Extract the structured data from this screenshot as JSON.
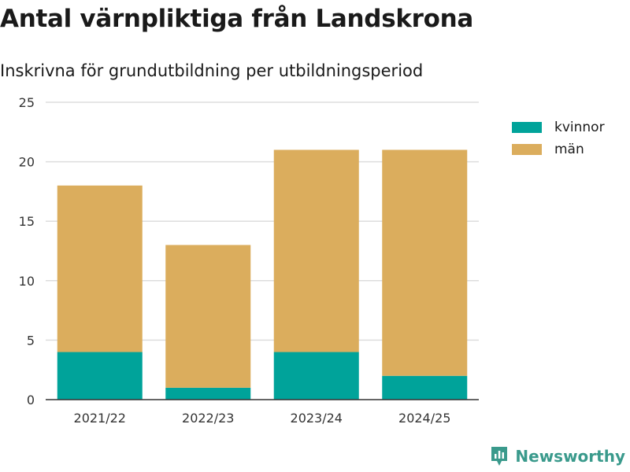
{
  "chart_data": {
    "type": "bar",
    "stacked": true,
    "title": "Antal värnpliktiga från Landskrona",
    "subtitle": "Inskrivna för grundutbildning per utbildningsperiod",
    "categories": [
      "2021/22",
      "2022/23",
      "2023/24",
      "2024/25"
    ],
    "series": [
      {
        "name": "kvinnor",
        "color": "#00a39a",
        "values": [
          4,
          1,
          4,
          2
        ]
      },
      {
        "name": "män",
        "color": "#dbad5d",
        "values": [
          14,
          12,
          17,
          19
        ]
      }
    ],
    "ylim": [
      0,
      25
    ],
    "yticks": [
      "0",
      "5",
      "10",
      "15",
      "20",
      "25"
    ],
    "grid": true,
    "legend_position": "right"
  },
  "branding": {
    "label": "Newsworthy",
    "icon": "newsworthy-logo-icon",
    "color": "#3a9a8c"
  }
}
